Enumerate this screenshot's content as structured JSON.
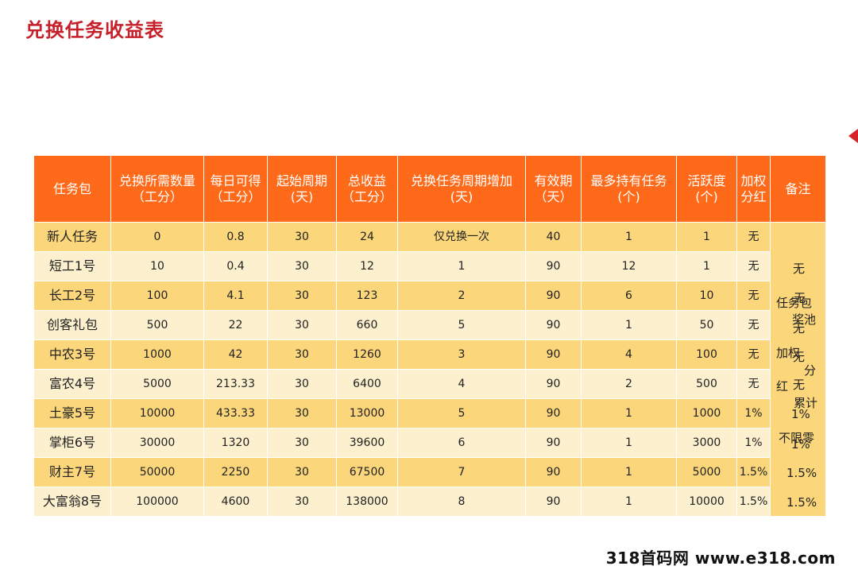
{
  "title": "兑换任务收益表",
  "headers": [
    "任务包",
    "兑换所需数量（工分）",
    "每日可得（工分）",
    "起始周期(天)",
    "总收益（工分）",
    "兑换任务周期增加(天)",
    "有效期（天）",
    "最多持有任务(个)",
    "活跃度(个)",
    "加权分红",
    "备注"
  ],
  "rows": [
    {
      "name": "新人任务",
      "cost": "0",
      "daily": "0.8",
      "cycle": "30",
      "total": "24",
      "increase": "仅兑换一次",
      "valid": "40",
      "max_hold": "1",
      "activity": "1",
      "bonus": "无"
    },
    {
      "name": "短工1号",
      "cost": "10",
      "daily": "0.4",
      "cycle": "30",
      "total": "12",
      "increase": "1",
      "valid": "90",
      "max_hold": "12",
      "activity": "1",
      "bonus": "无"
    },
    {
      "name": "长工2号",
      "cost": "100",
      "daily": "4.1",
      "cycle": "30",
      "total": "123",
      "increase": "2",
      "valid": "90",
      "max_hold": "6",
      "activity": "10",
      "bonus": "无"
    },
    {
      "name": "创客礼包",
      "cost": "500",
      "daily": "22",
      "cycle": "30",
      "total": "660",
      "increase": "5",
      "valid": "90",
      "max_hold": "1",
      "activity": "50",
      "bonus": "无"
    },
    {
      "name": "中农3号",
      "cost": "1000",
      "daily": "42",
      "cycle": "30",
      "total": "1260",
      "increase": "3",
      "valid": "90",
      "max_hold": "4",
      "activity": "100",
      "bonus": "无"
    },
    {
      "name": "富农4号",
      "cost": "5000",
      "daily": "213.33",
      "cycle": "30",
      "total": "6400",
      "increase": "4",
      "valid": "90",
      "max_hold": "2",
      "activity": "500",
      "bonus": "无"
    },
    {
      "name": "土豪5号",
      "cost": "10000",
      "daily": "433.33",
      "cycle": "30",
      "total": "13000",
      "increase": "5",
      "valid": "90",
      "max_hold": "1",
      "activity": "1000",
      "bonus": "1%"
    },
    {
      "name": "掌柜6号",
      "cost": "30000",
      "daily": "1320",
      "cycle": "30",
      "total": "39600",
      "increase": "6",
      "valid": "90",
      "max_hold": "1",
      "activity": "3000",
      "bonus": "1%"
    },
    {
      "name": "财主7号",
      "cost": "50000",
      "daily": "2250",
      "cycle": "30",
      "total": "67500",
      "increase": "7",
      "valid": "90",
      "max_hold": "1",
      "activity": "5000",
      "bonus": "1.5%"
    },
    {
      "name": "大富翁8号",
      "cost": "100000",
      "daily": "4600",
      "cycle": "30",
      "total": "138000",
      "increase": "8",
      "valid": "90",
      "max_hold": "1",
      "activity": "10000",
      "bonus": "1.5%"
    }
  ],
  "remarks": {
    "a": "无",
    "b": "无",
    "c": "任务包",
    "d": "奖池",
    "e": "无",
    "f": "加权",
    "g": "无",
    "h": "分",
    "i": "红",
    "j": "无",
    "k": "累计",
    "l": "1%",
    "m": "不限零",
    "n": "1%",
    "o": "1.5%",
    "p": "1.5%"
  },
  "watermark": "318首码网 www.e318.com"
}
